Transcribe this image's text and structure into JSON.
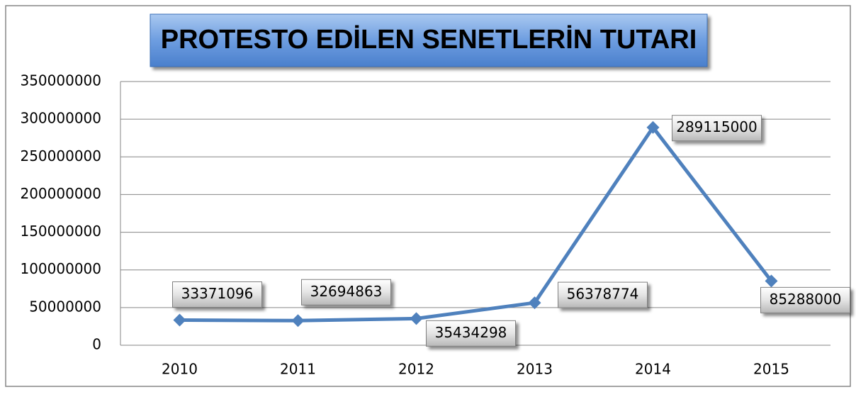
{
  "chart_data": {
    "type": "line",
    "title": "PROTESTO EDİLEN SENETLERİN TUTARI",
    "categories": [
      "2010",
      "2011",
      "2012",
      "2013",
      "2014",
      "2015"
    ],
    "values": [
      33371096,
      32694863,
      35434298,
      56378774,
      289115000,
      85288000
    ],
    "color": "#4f81bd",
    "ylim": [
      0,
      350000000
    ],
    "yticks": [
      0,
      50000000,
      100000000,
      150000000,
      200000000,
      250000000,
      300000000,
      350000000
    ],
    "grid": true
  }
}
